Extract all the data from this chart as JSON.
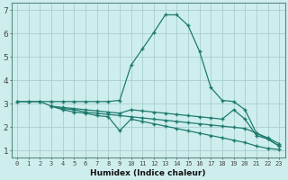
{
  "xlabel": "Humidex (Indice chaleur)",
  "background_color": "#ceeeed",
  "grid_color": "#a8cece",
  "line_color": "#1e7b6e",
  "xlim": [
    -0.5,
    23.5
  ],
  "ylim": [
    0.7,
    7.3
  ],
  "xticks": [
    0,
    1,
    2,
    3,
    4,
    5,
    6,
    7,
    8,
    9,
    10,
    11,
    12,
    13,
    14,
    15,
    16,
    17,
    18,
    19,
    20,
    21,
    22,
    23
  ],
  "yticks": [
    1,
    2,
    3,
    4,
    5,
    6,
    7
  ],
  "lines": [
    {
      "x": [
        0,
        1,
        2,
        3,
        4,
        5,
        6,
        7,
        8,
        9,
        10,
        11,
        12,
        13,
        14,
        15,
        16,
        17,
        18,
        19,
        20,
        21,
        22,
        23
      ],
      "y": [
        3.1,
        3.1,
        3.1,
        3.1,
        3.1,
        3.1,
        3.1,
        3.1,
        3.1,
        3.15,
        4.65,
        5.35,
        6.05,
        6.8,
        6.8,
        6.35,
        5.25,
        3.7,
        3.15,
        3.1,
        2.75,
        1.75,
        1.5,
        1.2
      ]
    },
    {
      "x": [
        0,
        1,
        2,
        3,
        4,
        5,
        6,
        7,
        8,
        9,
        10,
        11,
        12,
        13,
        14,
        15,
        16,
        17,
        18,
        19,
        20,
        21,
        22,
        23
      ],
      "y": [
        3.1,
        3.1,
        3.1,
        2.9,
        2.85,
        2.8,
        2.75,
        2.7,
        2.65,
        2.6,
        2.75,
        2.7,
        2.65,
        2.6,
        2.55,
        2.5,
        2.45,
        2.4,
        2.35,
        2.75,
        2.35,
        1.65,
        1.5,
        1.2
      ]
    },
    {
      "x": [
        3,
        4,
        5,
        6,
        7,
        8,
        9,
        10,
        11,
        12,
        13,
        14,
        15,
        16,
        17,
        18,
        19,
        20,
        21,
        22,
        23
      ],
      "y": [
        2.9,
        2.8,
        2.75,
        2.65,
        2.6,
        2.55,
        2.5,
        2.45,
        2.4,
        2.35,
        2.3,
        2.25,
        2.2,
        2.15,
        2.1,
        2.05,
        2.0,
        1.95,
        1.75,
        1.55,
        1.3
      ]
    },
    {
      "x": [
        3,
        4,
        5,
        6,
        7,
        8,
        9,
        10,
        11,
        12,
        13,
        14,
        15,
        16,
        17,
        18,
        19,
        20,
        21,
        22,
        23
      ],
      "y": [
        2.9,
        2.75,
        2.65,
        2.6,
        2.5,
        2.45,
        1.85,
        2.35,
        2.25,
        2.15,
        2.05,
        1.95,
        1.85,
        1.75,
        1.65,
        1.55,
        1.45,
        1.35,
        1.2,
        1.1,
        1.05
      ]
    }
  ]
}
